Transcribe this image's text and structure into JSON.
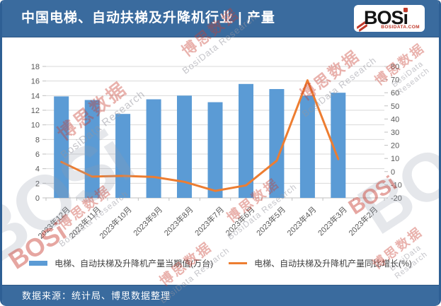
{
  "header": {
    "title": "中国电梯、自动扶梯及升降机行业 | 产量",
    "logo": {
      "word_main": "BOS",
      "word_i": "i",
      "caption": "BOSIDATA.COM"
    }
  },
  "footer": {
    "source": "数据来源：统计局、博思数据整理"
  },
  "watermark": {
    "cn": "博思数据",
    "en": "BosiData Research",
    "logo": "BOSi"
  },
  "colors": {
    "header_bg": "#3A6B9E",
    "frame_border": "#2E5F94",
    "bar": "#5B9BD5",
    "line": "#ED7D31",
    "axis_text": "#595959",
    "gridline": "#D9D9D9",
    "axis_line": "#BFBFBF",
    "logo_red": "#C0392B"
  },
  "chart_data": {
    "type": "bar",
    "combo": "bar+line",
    "title": "中国电梯、自动扶梯及升降机行业 | 产量",
    "categories": [
      "2023年12月",
      "2023年11月",
      "2023年10月",
      "2023年9月",
      "2023年8月",
      "2023年7月",
      "2023年6月",
      "2023年5月",
      "2023年4月",
      "2023年3月",
      "2023年2月"
    ],
    "series": [
      {
        "name": "电梯、自动扶梯及升降机产量当期值(万台)",
        "type": "bar",
        "axis": "left",
        "color": "#5B9BD5",
        "values": [
          13.9,
          13.4,
          11.5,
          13.5,
          14.0,
          13.1,
          15.6,
          14.9,
          14.0,
          14.4,
          null
        ]
      },
      {
        "name": "电梯、自动扶梯及升降机产量同比增长(%)",
        "type": "line",
        "axis": "right",
        "color": "#ED7D31",
        "values": [
          7.3,
          -3.8,
          -3.3,
          -4.1,
          -7.8,
          -14.7,
          -10.5,
          8.3,
          69.4,
          9.5,
          null
        ]
      }
    ],
    "left_axis": {
      "min": 0,
      "max": 18,
      "step": 2
    },
    "right_axis": {
      "min": -20,
      "max": 80,
      "step": 10
    },
    "grid": true,
    "legend_position": "bottom"
  }
}
